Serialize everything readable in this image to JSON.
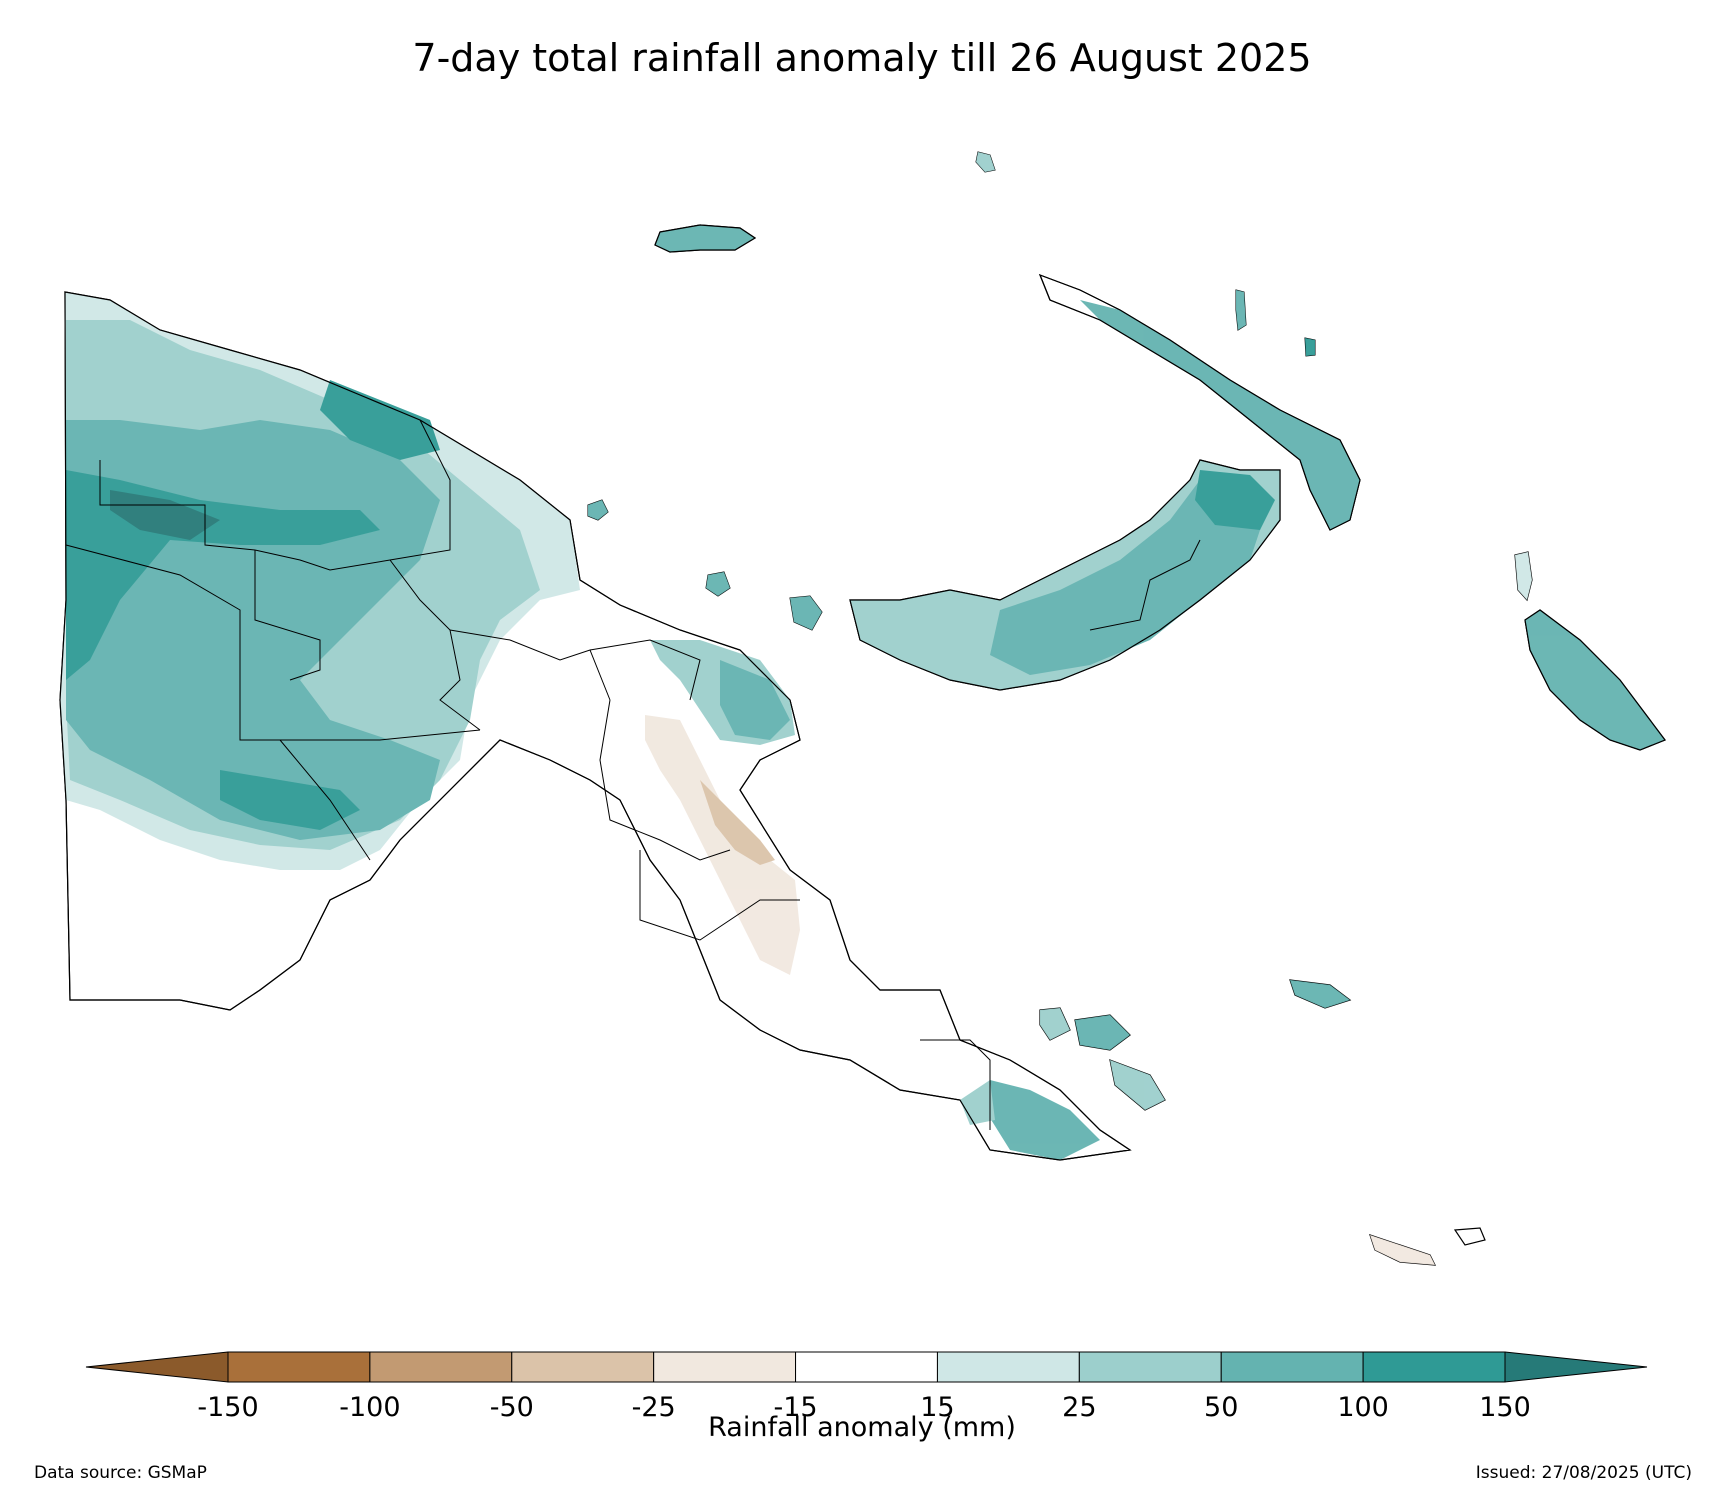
{
  "title": "7-day total rainfall anomaly till 26 August 2025",
  "colorbar": {
    "label": "Rainfall anomaly (mm)",
    "ticks": [
      "-150",
      "-100",
      "-50",
      "-25",
      "-15",
      "15",
      "25",
      "50",
      "100",
      "150"
    ],
    "extend_low_color": "#8b5a2b",
    "extend_high_color": "#267a78",
    "colors": [
      "#a9703a",
      "#c29a72",
      "#dbc3a9",
      "#f1e8df",
      "#ffffff",
      "#cfe7e6",
      "#9ccfcc",
      "#64b3b0",
      "#2f9a95"
    ]
  },
  "legend_colors": {
    "cat_plus15_25": "#cfe7e6",
    "cat_plus25_50": "#9ccfcc",
    "cat_plus50_100": "#64b3b0",
    "cat_plus100_150": "#2f9a95",
    "cat_above150": "#267a78",
    "cat_minus15_25": "#f1e8df",
    "cat_minus25_50": "#dbc3a9"
  },
  "footer": {
    "source": "Data source: GSMaP",
    "issued": "Issued: 27/08/2025 (UTC)"
  }
}
